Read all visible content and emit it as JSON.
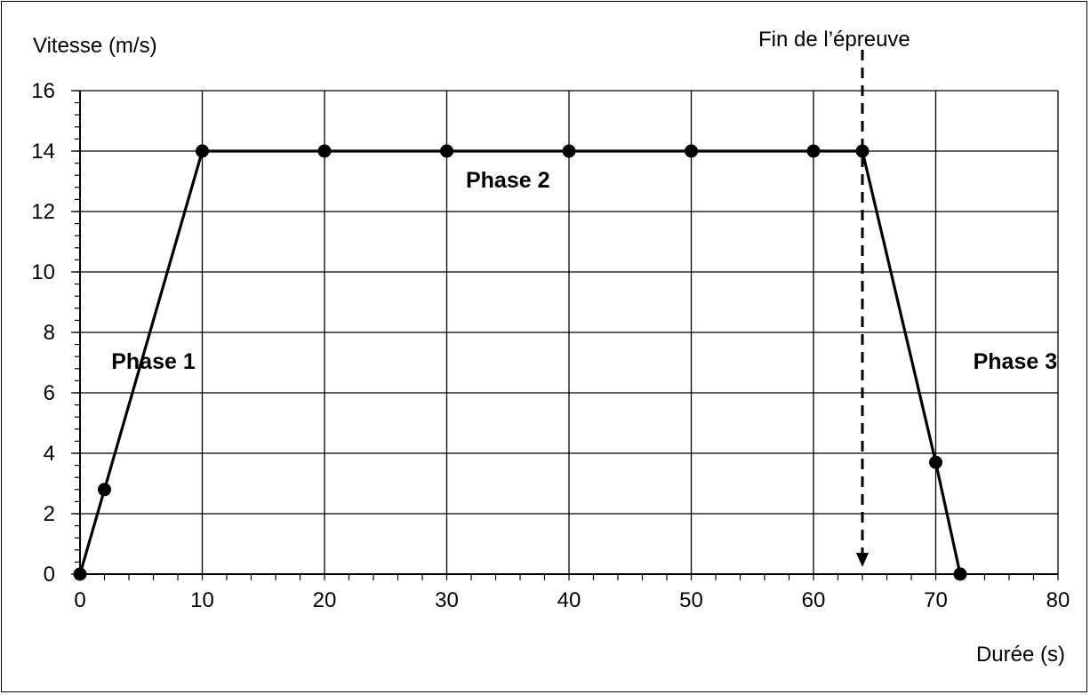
{
  "chart_data": {
    "type": "line",
    "ylabel": "Vitesse (m/s)",
    "xlabel": "Durée (s)",
    "xlim": [
      0,
      80
    ],
    "ylim": [
      0,
      16
    ],
    "x_ticks": [
      0,
      10,
      20,
      30,
      40,
      50,
      60,
      70,
      80
    ],
    "y_ticks": [
      0,
      2,
      4,
      6,
      8,
      10,
      12,
      14,
      16
    ],
    "x_minor_step": 2,
    "y_minor_step": 0.4,
    "grid": true,
    "series": [
      {
        "points": [
          [
            0,
            0
          ],
          [
            2,
            2.8
          ],
          [
            10,
            14
          ],
          [
            20,
            14
          ],
          [
            30,
            14
          ],
          [
            40,
            14
          ],
          [
            50,
            14
          ],
          [
            60,
            14
          ],
          [
            64,
            14
          ],
          [
            70,
            3.7
          ],
          [
            72,
            0
          ]
        ]
      }
    ],
    "annotations": [
      {
        "text": "Phase 1",
        "x": 6,
        "y": 6.8
      },
      {
        "text": "Phase 2",
        "x": 35,
        "y": 12.8
      },
      {
        "text": "Phase 3",
        "x": 76.5,
        "y": 6.8
      }
    ],
    "end_marker": {
      "label": "Fin de l’épreuve",
      "x": 64
    },
    "colors": {
      "line": "#000000",
      "grid": "#000000",
      "background": "#ffffff"
    }
  }
}
